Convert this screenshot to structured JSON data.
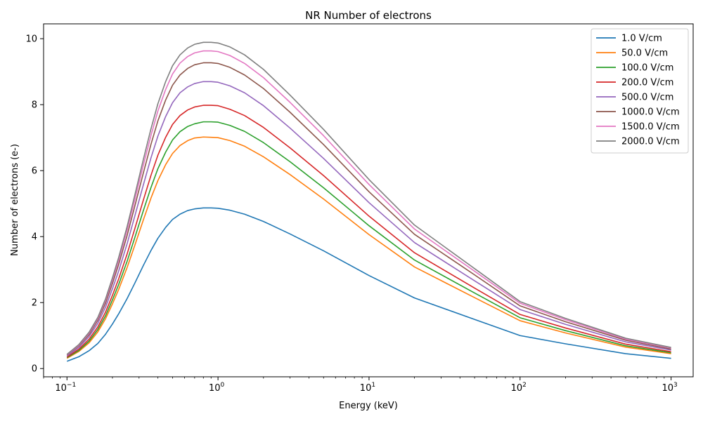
{
  "chart_data": {
    "type": "line",
    "title": "NR Number of electrons",
    "xlabel": "Energy (keV)",
    "ylabel": "Number of electrons (e-)",
    "xscale": "log",
    "xlim": [
      0.07,
      1400
    ],
    "ylim": [
      -0.25,
      10.45
    ],
    "x_ticks": [
      {
        "value": 0.1,
        "base": "10",
        "exp": "−1"
      },
      {
        "value": 1,
        "base": "10",
        "exp": "0"
      },
      {
        "value": 10,
        "base": "10",
        "exp": "1"
      },
      {
        "value": 100,
        "base": "10",
        "exp": "2"
      },
      {
        "value": 1000,
        "base": "10",
        "exp": "3"
      }
    ],
    "y_ticks": [
      0,
      2,
      4,
      6,
      8,
      10
    ],
    "grid": false,
    "legend_position": "top-right",
    "x": [
      0.1,
      0.12,
      0.14,
      0.16,
      0.18,
      0.2,
      0.22,
      0.25,
      0.28,
      0.32,
      0.36,
      0.4,
      0.45,
      0.5,
      0.56,
      0.63,
      0.7,
      0.8,
      0.9,
      1.0,
      1.2,
      1.5,
      2,
      3,
      5,
      10,
      20,
      50,
      100,
      200,
      500,
      1000
    ],
    "series": [
      {
        "name": "1.0 V/cm",
        "color": "#1f77b4",
        "values": [
          0.22,
          0.36,
          0.54,
          0.76,
          1.04,
          1.35,
          1.66,
          2.12,
          2.57,
          3.12,
          3.58,
          3.95,
          4.28,
          4.52,
          4.68,
          4.79,
          4.84,
          4.87,
          4.87,
          4.86,
          4.8,
          4.68,
          4.46,
          4.08,
          3.57,
          2.82,
          2.14,
          1.49,
          1.0,
          0.75,
          0.45,
          0.31
        ]
      },
      {
        "name": "50.0 V/cm",
        "color": "#ff7f0e",
        "values": [
          0.31,
          0.52,
          0.78,
          1.11,
          1.51,
          1.96,
          2.4,
          3.06,
          3.71,
          4.5,
          5.17,
          5.7,
          6.18,
          6.52,
          6.76,
          6.91,
          6.99,
          7.02,
          7.01,
          7.0,
          6.91,
          6.74,
          6.42,
          5.88,
          5.14,
          4.06,
          3.08,
          2.15,
          1.45,
          1.08,
          0.65,
          0.45
        ]
      },
      {
        "name": "100.0 V/cm",
        "color": "#2ca02c",
        "values": [
          0.33,
          0.55,
          0.83,
          1.18,
          1.6,
          2.08,
          2.55,
          3.25,
          3.94,
          4.78,
          5.49,
          6.06,
          6.56,
          6.93,
          7.18,
          7.34,
          7.42,
          7.48,
          7.48,
          7.47,
          7.37,
          7.19,
          6.85,
          6.27,
          5.48,
          4.33,
          3.29,
          2.29,
          1.54,
          1.15,
          0.69,
          0.48
        ]
      },
      {
        "name": "200.0 V/cm",
        "color": "#d62728",
        "values": [
          0.35,
          0.59,
          0.89,
          1.26,
          1.71,
          2.22,
          2.72,
          3.47,
          4.21,
          5.1,
          5.86,
          6.47,
          7.01,
          7.4,
          7.67,
          7.84,
          7.93,
          7.98,
          7.98,
          7.97,
          7.86,
          7.67,
          7.31,
          6.69,
          5.85,
          4.62,
          3.51,
          2.44,
          1.64,
          1.23,
          0.74,
          0.51
        ]
      },
      {
        "name": "500.0 V/cm",
        "color": "#9467bd",
        "values": [
          0.38,
          0.64,
          0.97,
          1.37,
          1.86,
          2.42,
          2.96,
          3.78,
          4.59,
          5.56,
          6.39,
          7.05,
          7.64,
          8.06,
          8.36,
          8.54,
          8.64,
          8.7,
          8.7,
          8.68,
          8.57,
          8.36,
          7.97,
          7.29,
          6.37,
          5.03,
          3.82,
          2.66,
          1.79,
          1.34,
          0.81,
          0.56
        ]
      },
      {
        "name": "1000.0 V/cm",
        "color": "#8c564b",
        "values": [
          0.41,
          0.69,
          1.03,
          1.46,
          1.98,
          2.58,
          3.16,
          4.03,
          4.89,
          5.92,
          6.8,
          7.51,
          8.14,
          8.59,
          8.9,
          9.1,
          9.21,
          9.27,
          9.27,
          9.25,
          9.13,
          8.9,
          8.49,
          7.77,
          6.79,
          5.36,
          4.07,
          2.84,
          1.9,
          1.42,
          0.86,
          0.59
        ]
      },
      {
        "name": "1500.0 V/cm",
        "color": "#e377c2",
        "values": [
          0.42,
          0.71,
          1.07,
          1.51,
          2.06,
          2.68,
          3.28,
          4.19,
          5.08,
          6.16,
          7.07,
          7.81,
          8.46,
          8.93,
          9.26,
          9.46,
          9.57,
          9.63,
          9.63,
          9.61,
          9.49,
          9.25,
          8.82,
          8.07,
          7.06,
          5.58,
          4.23,
          2.95,
          1.98,
          1.48,
          0.89,
          0.62
        ]
      },
      {
        "name": "2000.0 V/cm",
        "color": "#7f7f7f",
        "values": [
          0.43,
          0.73,
          1.1,
          1.55,
          2.11,
          2.75,
          3.37,
          4.3,
          5.22,
          6.33,
          7.27,
          8.03,
          8.7,
          9.18,
          9.51,
          9.72,
          9.83,
          9.89,
          9.89,
          9.87,
          9.75,
          9.51,
          9.07,
          8.29,
          7.25,
          5.73,
          4.35,
          3.03,
          2.03,
          1.52,
          0.92,
          0.64
        ]
      }
    ]
  }
}
